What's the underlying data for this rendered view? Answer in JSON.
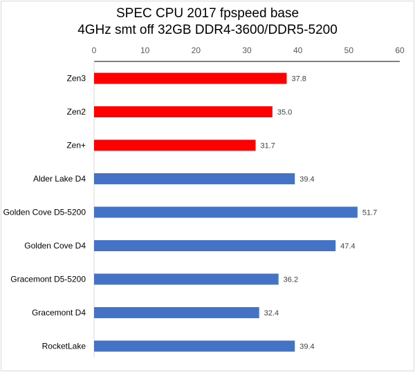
{
  "chart_data": {
    "type": "bar",
    "orientation": "horizontal",
    "title_lines": [
      "SPEC CPU 2017 fpspeed base",
      "4GHz smt off 32GB DDR4-3600/DDR5-5200"
    ],
    "xlabel": "",
    "ylabel": "",
    "xlim": [
      0,
      60
    ],
    "x_ticks": [
      "0",
      "10",
      "20",
      "30",
      "40",
      "50",
      "60"
    ],
    "x_axis_position": "top",
    "grid": false,
    "legend": "none",
    "categories": [
      "Zen3",
      "Zen2",
      "Zen+",
      "Alder Lake D4",
      "Golden Cove D5-5200",
      "Golden Cove D4",
      "Gracemont D5-5200",
      "Gracemont D4",
      "RocketLake"
    ],
    "values": [
      37.8,
      35.0,
      31.7,
      39.4,
      51.7,
      47.4,
      36.2,
      32.4,
      39.4
    ],
    "value_labels": [
      "37.8",
      "35.0",
      "31.7",
      "39.4",
      "51.7",
      "47.4",
      "36.2",
      "32.4",
      "39.4"
    ],
    "bar_colors": [
      "#ff0000",
      "#ff0000",
      "#ff0000",
      "#4472c4",
      "#4472c4",
      "#4472c4",
      "#4472c4",
      "#4472c4",
      "#4472c4"
    ]
  }
}
